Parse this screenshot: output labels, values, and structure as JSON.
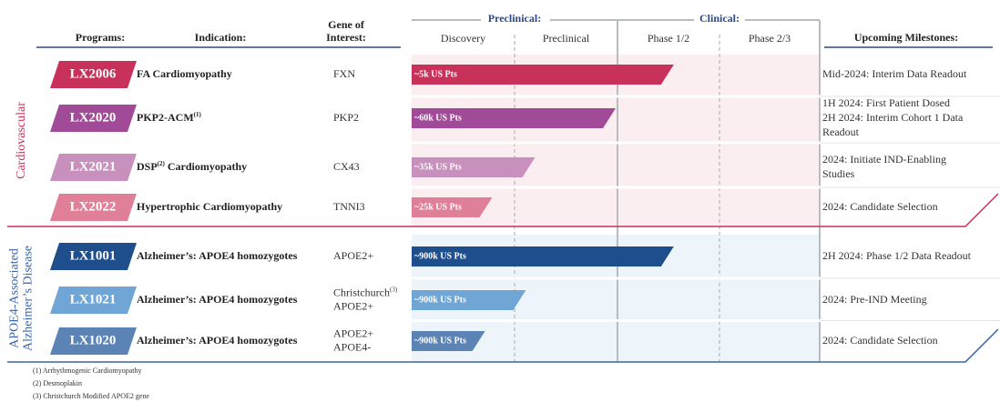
{
  "header": {
    "programs": "Programs:",
    "indication": "Indication:",
    "gene": [
      "Gene of",
      "Interest:"
    ],
    "preclinical_group": "Preclinical:",
    "clinical_group": "Clinical:",
    "phases": [
      "Discovery",
      "Preclinical",
      "Phase 1/2",
      "Phase 2/3"
    ],
    "milestones": "Upcoming Milestones:"
  },
  "groups": [
    {
      "name": [
        "Cardiovascular"
      ],
      "rows": [
        {
          "program": "LX2006",
          "color": "#c8325a",
          "indication": {
            "text": "FA Cardiomyopathy"
          },
          "gene": [
            {
              "text": "FXN"
            }
          ],
          "patients": "~5k US Pts",
          "progress": 2.57,
          "milestones": [
            "Mid-2024: Interim Data Readout"
          ]
        },
        {
          "program": "LX2020",
          "color": "#a04a98",
          "indication": {
            "text": "PKP2-ACM",
            "sup": "(1)"
          },
          "gene": [
            {
              "text": "PKP2"
            }
          ],
          "patients": "~60k US Pts",
          "progress": 2.0,
          "milestones": [
            "1H 2024: First Patient Dosed",
            "2H 2024: Interim Cohort 1 Data",
            "Readout"
          ]
        },
        {
          "program": "LX2021",
          "color": "#c890bd",
          "indication": {
            "text": "DSP",
            "sup": "(2)",
            "after": "Cardiomyopathy"
          },
          "gene": [
            {
              "text": "CX43"
            }
          ],
          "patients": "~35k US Pts",
          "progress": 1.21,
          "milestones": [
            "2024: Initiate IND-Enabling",
            "Studies"
          ]
        },
        {
          "program": "LX2022",
          "color": "#e07f98",
          "indication": {
            "text": "Hypertrophic Cardiomyopathy"
          },
          "gene": [
            {
              "text": "TNNI3"
            }
          ],
          "patients": "~25k US Pts",
          "progress": 0.79,
          "milestones": [
            "2024: Candidate Selection"
          ]
        }
      ]
    },
    {
      "name": [
        "APOE4-Associated",
        "Alzheimer’s Disease"
      ],
      "rows": [
        {
          "program": "LX1001",
          "color": "#1e4f8c",
          "indication": {
            "text": "Alzheimer’s: APOE4 homozygotes"
          },
          "gene": [
            {
              "text": "APOE2+"
            }
          ],
          "patients": "~900k US Pts",
          "progress": 2.57,
          "milestones": [
            "2H 2024: Phase 1/2 Data Readout"
          ]
        },
        {
          "program": "LX1021",
          "color": "#6fa6d6",
          "indication": {
            "text": "Alzheimer’s: APOE4 homozygotes"
          },
          "gene": [
            {
              "text": "Christchurch",
              "sup": "(3)"
            },
            {
              "text": "APOE2+"
            }
          ],
          "patients": "~900k US Pts",
          "progress": 1.12,
          "milestones": [
            "2024: Pre-IND Meeting"
          ]
        },
        {
          "program": "LX1020",
          "color": "#5b84b4",
          "indication": {
            "text": "Alzheimer’s: APOE4 homozygotes"
          },
          "gene": [
            {
              "text": "APOE2+"
            },
            {
              "text": "APOE4-"
            }
          ],
          "patients": "~900k US Pts",
          "progress": 0.72,
          "milestones": [
            "2024: Candidate Selection"
          ]
        }
      ]
    }
  ],
  "footnotes": [
    "(1)   Arrhythmogenic Cardiomyopathy",
    "(2)   Desmoplakin",
    "(3)   Christchurch Modified APOE2 gene"
  ]
}
